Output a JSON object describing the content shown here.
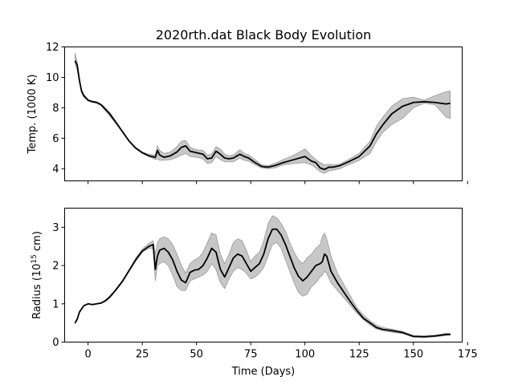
{
  "title": "2020rth.dat Black Body Evolution",
  "colors": {
    "line": "#000000",
    "band": "#bdbdbd",
    "band_edge": "#999999",
    "frame": "#000000"
  },
  "chart_data": [
    {
      "type": "area",
      "title": "2020rth.dat Black Body Evolution",
      "ylabel": "Temp. (1000 K)",
      "xlabel": "",
      "xlim": [
        -10.8,
        172.5
      ],
      "ylim": [
        3.2,
        12
      ],
      "xticks": [
        0,
        25,
        50,
        75,
        100,
        125,
        150,
        175
      ],
      "xtick_labels_visible": false,
      "yticks": [
        4,
        6,
        8,
        10,
        12
      ],
      "ytick_labels": [
        "4",
        "6",
        "8",
        "10",
        "12"
      ],
      "grid": false,
      "series": [
        {
          "kind": "line+band",
          "x": [
            -6,
            -5,
            -4,
            -3,
            -2,
            0,
            2,
            4,
            6,
            8,
            10,
            13,
            16,
            19,
            22,
            25,
            28,
            31,
            32,
            33,
            35,
            38,
            41,
            43,
            45,
            47,
            50,
            53,
            55,
            57,
            59,
            61,
            63,
            65,
            67,
            70,
            72,
            74,
            77,
            80,
            83,
            86,
            90,
            95,
            100,
            103,
            105,
            107,
            109,
            111,
            113,
            116,
            120,
            125,
            130,
            133,
            136,
            140,
            145,
            150,
            155,
            160,
            165,
            167
          ],
          "y": [
            11.1,
            10.8,
            9.8,
            9.1,
            8.8,
            8.5,
            8.4,
            8.35,
            8.2,
            7.9,
            7.6,
            7.0,
            6.4,
            5.8,
            5.35,
            5.05,
            4.85,
            4.75,
            5.2,
            4.9,
            4.75,
            4.85,
            5.1,
            5.4,
            5.5,
            5.15,
            5.05,
            4.95,
            4.65,
            4.7,
            5.15,
            4.95,
            4.7,
            4.65,
            4.7,
            4.95,
            4.8,
            4.7,
            4.4,
            4.15,
            4.1,
            4.2,
            4.4,
            4.6,
            4.8,
            4.5,
            4.4,
            4.05,
            3.95,
            4.1,
            4.1,
            4.2,
            4.45,
            4.8,
            5.5,
            6.3,
            6.9,
            7.6,
            8.1,
            8.35,
            8.4,
            8.35,
            8.25,
            8.3
          ],
          "y_low": [
            10.9,
            10.5,
            9.7,
            9.0,
            8.7,
            8.45,
            8.35,
            8.3,
            8.15,
            7.8,
            7.45,
            6.95,
            6.35,
            5.75,
            5.3,
            5.0,
            4.8,
            4.6,
            4.65,
            4.55,
            4.55,
            4.6,
            4.75,
            4.9,
            5.0,
            4.8,
            4.75,
            4.65,
            4.35,
            4.4,
            4.8,
            4.6,
            4.45,
            4.45,
            4.45,
            4.7,
            4.55,
            4.5,
            4.25,
            4.05,
            4.0,
            4.05,
            4.25,
            4.35,
            4.4,
            4.25,
            4.05,
            3.8,
            3.7,
            3.85,
            3.9,
            4.0,
            4.25,
            4.55,
            5.0,
            5.8,
            6.4,
            6.9,
            7.3,
            8.0,
            8.3,
            8.2,
            7.4,
            7.3
          ],
          "y_high": [
            11.6,
            11.0,
            10.0,
            9.2,
            8.9,
            8.55,
            8.45,
            8.4,
            8.25,
            8.0,
            7.7,
            7.1,
            6.45,
            5.85,
            5.4,
            5.1,
            4.95,
            4.9,
            5.5,
            5.2,
            5.0,
            5.1,
            5.45,
            5.8,
            5.85,
            5.4,
            5.25,
            5.2,
            4.9,
            4.95,
            5.45,
            5.3,
            4.95,
            4.85,
            4.9,
            5.25,
            5.0,
            4.9,
            4.6,
            4.25,
            4.2,
            4.35,
            4.6,
            4.9,
            5.3,
            4.85,
            4.6,
            4.4,
            4.25,
            4.3,
            4.25,
            4.3,
            4.6,
            5.0,
            5.8,
            6.8,
            7.4,
            8.1,
            8.6,
            8.7,
            8.5,
            8.8,
            9.05,
            9.1
          ]
        }
      ]
    },
    {
      "type": "area",
      "title": "",
      "ylabel": "Radius (10^15 cm)",
      "ylabel_base": "Radius (10",
      "ylabel_sup": "15",
      "ylabel_rest": " cm)",
      "xlabel": "Time (Days)",
      "xlim": [
        -10.8,
        172.5
      ],
      "ylim": [
        0,
        3.5
      ],
      "xticks": [
        0,
        25,
        50,
        75,
        100,
        125,
        150,
        175
      ],
      "xtick_labels": [
        "0",
        "25",
        "50",
        "75",
        "100",
        "125",
        "150",
        "175"
      ],
      "yticks": [
        0,
        1,
        2,
        3
      ],
      "ytick_labels": [
        "0",
        "1",
        "2",
        "3"
      ],
      "grid": false,
      "series": [
        {
          "kind": "line+band",
          "x": [
            -6,
            -5,
            -4,
            -2,
            0,
            2,
            4,
            6,
            8,
            10,
            13,
            16,
            19,
            22,
            25,
            28,
            30,
            31,
            32,
            33,
            35,
            37,
            39,
            41,
            43,
            45,
            47,
            49,
            51,
            53,
            55,
            57,
            59,
            61,
            63,
            65,
            67,
            69,
            71,
            73,
            75,
            77,
            79,
            81,
            83,
            85,
            87,
            89,
            91,
            93,
            95,
            97,
            99,
            101,
            103,
            105,
            107,
            108,
            109,
            110,
            112,
            115,
            118,
            121,
            124,
            127,
            130,
            133,
            136,
            140,
            145,
            150,
            155,
            160,
            165,
            167
          ],
          "y": [
            0.5,
            0.6,
            0.78,
            0.95,
            1.0,
            0.98,
            1.0,
            1.02,
            1.08,
            1.18,
            1.38,
            1.6,
            1.88,
            2.15,
            2.38,
            2.5,
            2.55,
            1.9,
            2.25,
            2.4,
            2.45,
            2.35,
            2.15,
            1.85,
            1.62,
            1.55,
            1.82,
            1.88,
            1.9,
            2.0,
            2.2,
            2.45,
            2.35,
            1.9,
            1.7,
            1.95,
            2.2,
            2.3,
            2.25,
            2.05,
            1.85,
            1.95,
            2.05,
            2.3,
            2.7,
            2.95,
            2.95,
            2.8,
            2.55,
            2.25,
            1.95,
            1.72,
            1.6,
            1.7,
            1.85,
            2.0,
            2.05,
            2.1,
            2.3,
            2.25,
            1.85,
            1.55,
            1.3,
            1.05,
            0.82,
            0.62,
            0.5,
            0.38,
            0.33,
            0.3,
            0.25,
            0.15,
            0.14,
            0.16,
            0.2,
            0.2
          ],
          "y_low": [
            0.48,
            0.58,
            0.76,
            0.94,
            0.99,
            0.97,
            0.99,
            1.01,
            1.06,
            1.15,
            1.35,
            1.58,
            1.85,
            2.12,
            2.35,
            2.45,
            2.45,
            1.6,
            2.0,
            2.05,
            2.1,
            2.0,
            1.75,
            1.45,
            1.35,
            1.35,
            1.6,
            1.65,
            1.7,
            1.75,
            1.85,
            2.05,
            1.9,
            1.55,
            1.4,
            1.65,
            1.85,
            1.95,
            1.9,
            1.8,
            1.65,
            1.7,
            1.8,
            1.95,
            2.25,
            2.55,
            2.6,
            2.45,
            2.15,
            1.85,
            1.55,
            1.3,
            1.2,
            1.25,
            1.45,
            1.55,
            1.7,
            1.75,
            1.85,
            1.8,
            1.55,
            1.35,
            1.15,
            0.95,
            0.75,
            0.58,
            0.45,
            0.34,
            0.29,
            0.26,
            0.22,
            0.13,
            0.12,
            0.14,
            0.17,
            0.18
          ],
          "y_high": [
            0.52,
            0.62,
            0.8,
            0.96,
            1.01,
            0.99,
            1.01,
            1.03,
            1.1,
            1.2,
            1.4,
            1.63,
            1.9,
            2.2,
            2.43,
            2.58,
            2.65,
            2.3,
            2.6,
            2.7,
            2.75,
            2.7,
            2.55,
            2.3,
            2.0,
            1.8,
            2.05,
            2.15,
            2.2,
            2.35,
            2.6,
            2.85,
            2.8,
            2.3,
            2.05,
            2.3,
            2.6,
            2.7,
            2.65,
            2.4,
            2.1,
            2.25,
            2.35,
            2.65,
            3.1,
            3.3,
            3.25,
            3.1,
            2.9,
            2.6,
            2.35,
            2.15,
            2.05,
            2.2,
            2.3,
            2.45,
            2.55,
            2.75,
            2.85,
            2.7,
            2.25,
            1.8,
            1.5,
            1.2,
            0.9,
            0.7,
            0.56,
            0.44,
            0.38,
            0.34,
            0.28,
            0.17,
            0.16,
            0.18,
            0.23,
            0.23
          ]
        }
      ]
    }
  ]
}
